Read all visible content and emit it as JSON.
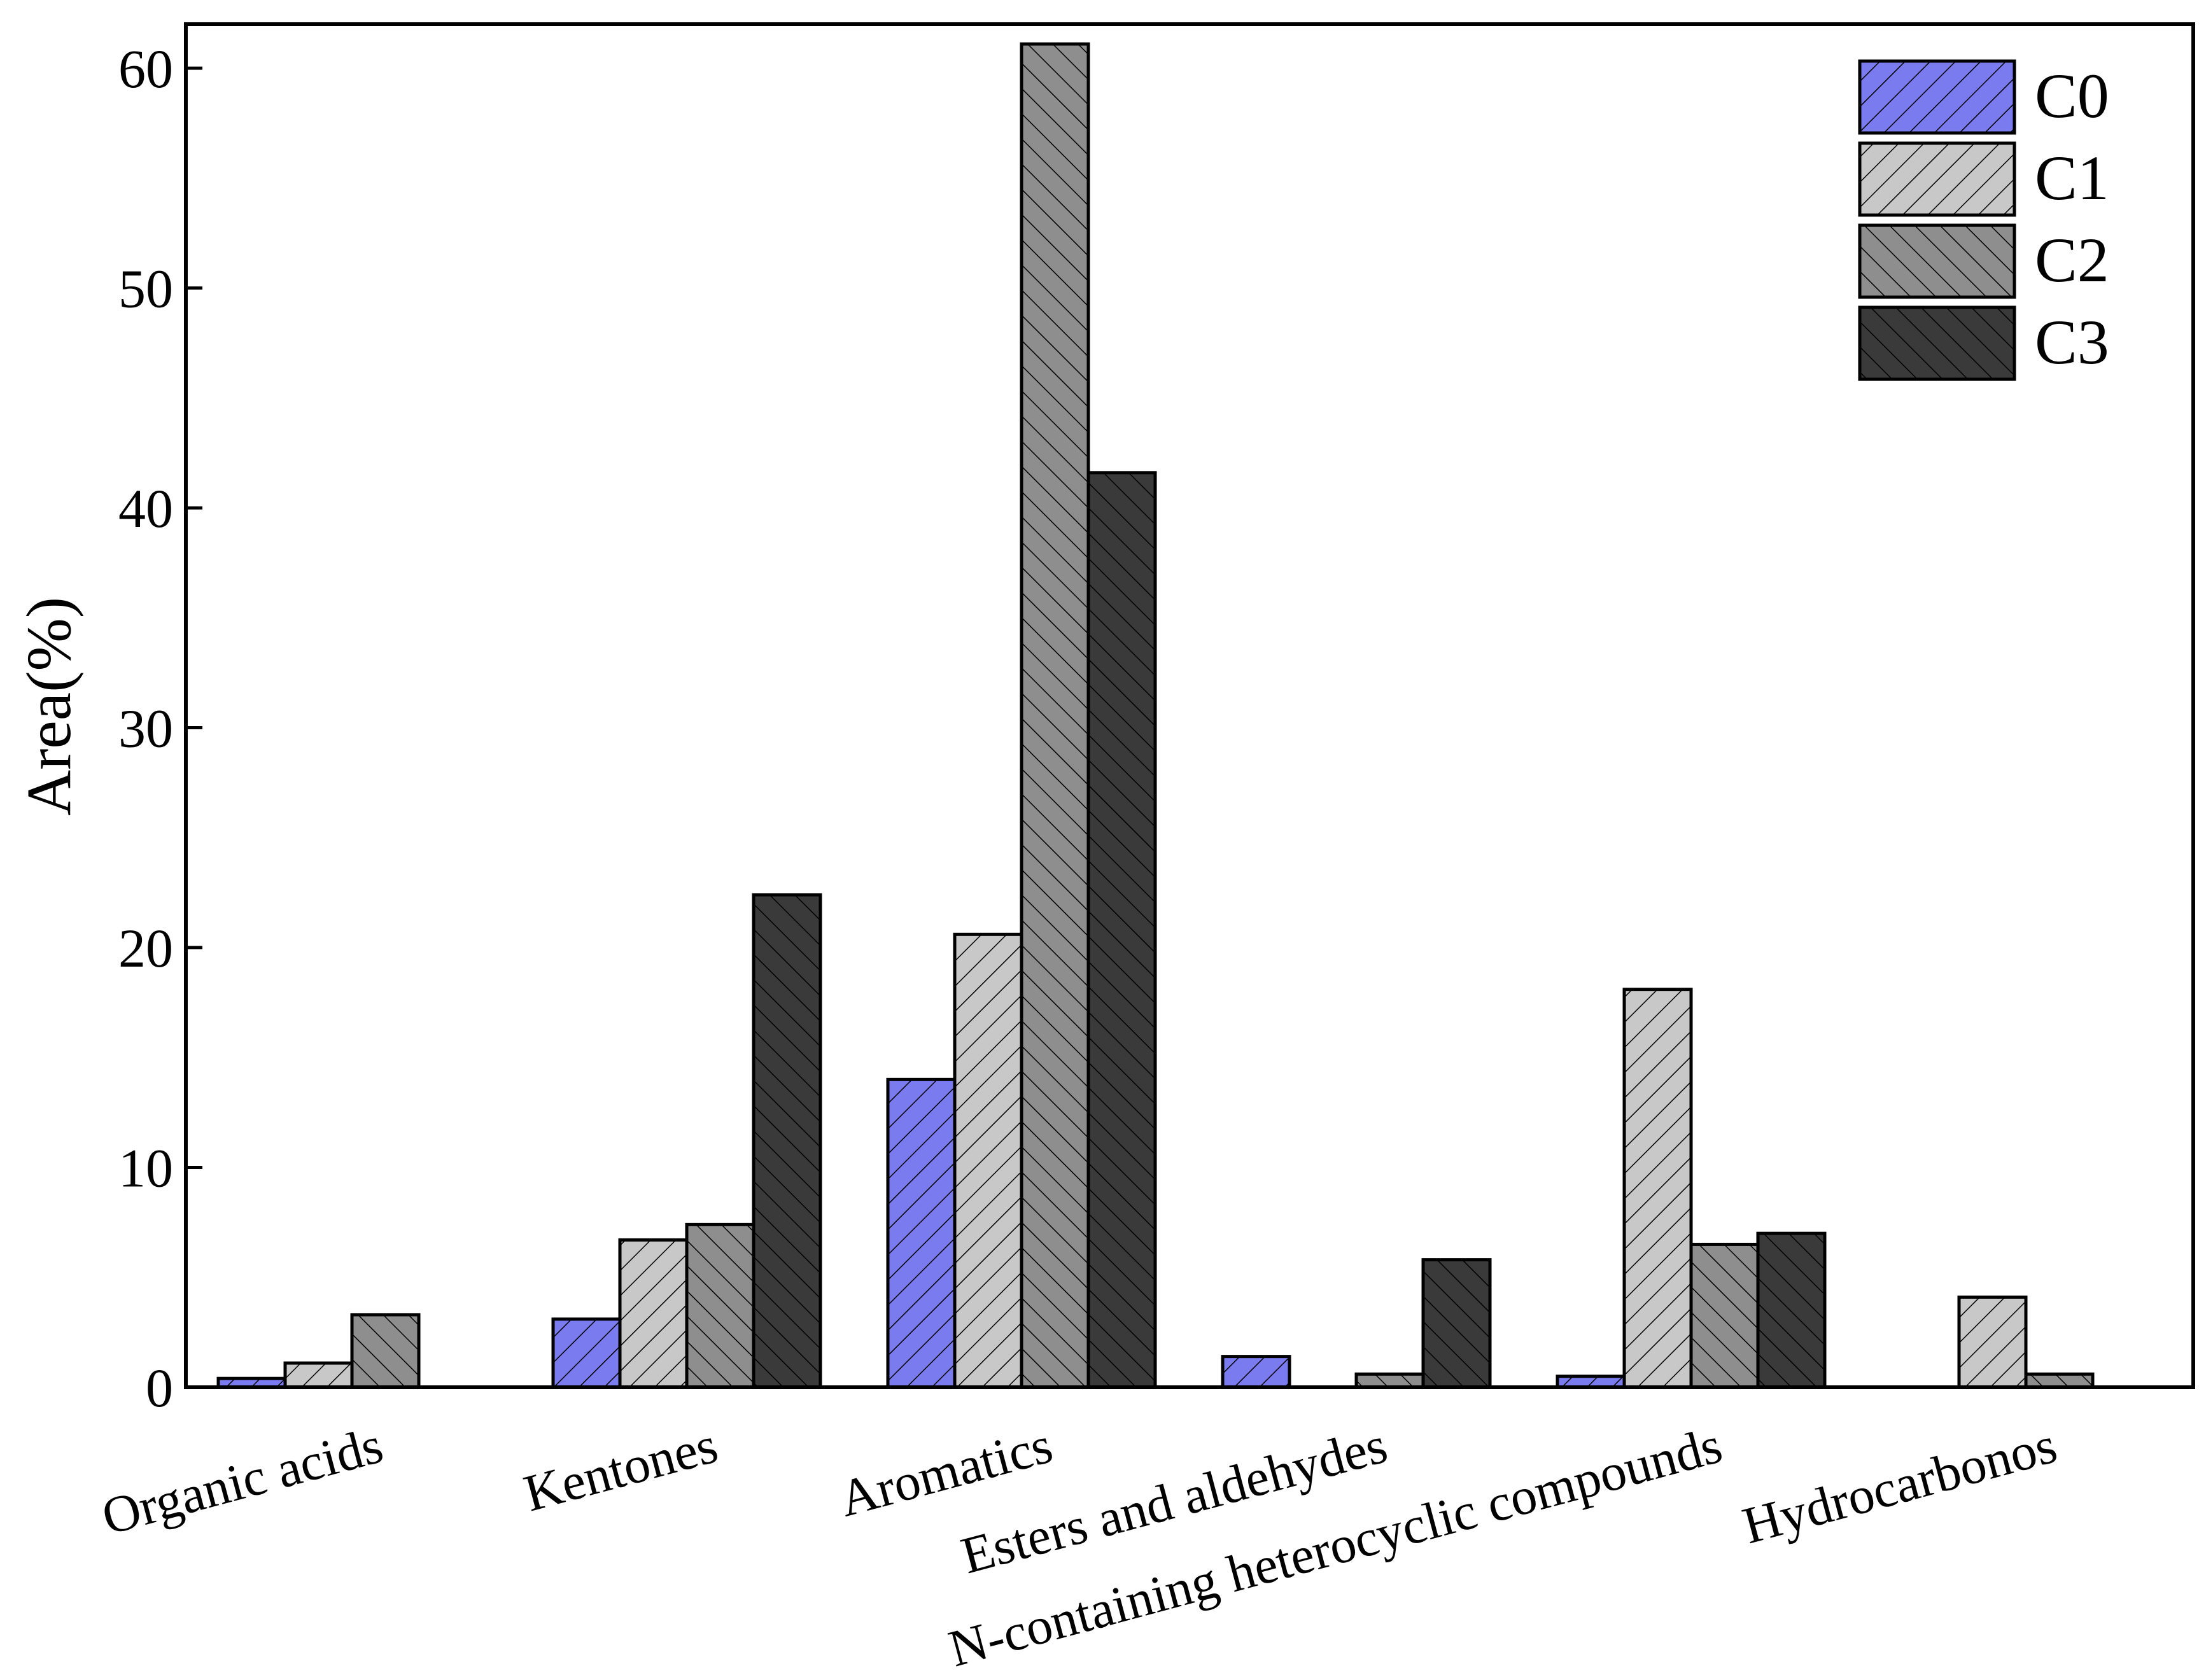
{
  "chart_data": {
    "type": "bar",
    "title": "",
    "xlabel": "",
    "ylabel": "Area(%)",
    "ylim": [
      0,
      62
    ],
    "yticks": [
      0,
      10,
      20,
      30,
      40,
      50,
      60
    ],
    "grid": false,
    "legend_position": "top-right",
    "categories": [
      "Organic acids",
      "Kentones",
      "Aromatics",
      "Esters and aldehydes",
      "N-containing heterocyclic compounds",
      "Hydrocarbonos"
    ],
    "series": [
      {
        "name": "C0",
        "color": "#7b7bf0",
        "hatch": "forward",
        "values": [
          0.4,
          3.1,
          14.0,
          1.4,
          0.5,
          0
        ]
      },
      {
        "name": "C1",
        "color": "#c8c8c8",
        "hatch": "forward",
        "values": [
          1.1,
          6.7,
          20.6,
          0,
          18.1,
          4.1
        ]
      },
      {
        "name": "C2",
        "color": "#8e8e8e",
        "hatch": "backward",
        "values": [
          3.3,
          7.4,
          61.1,
          0.6,
          6.5,
          0.6
        ]
      },
      {
        "name": "C3",
        "color": "#3a3a3a",
        "hatch": "backward",
        "values": [
          0,
          22.4,
          41.6,
          5.8,
          7.0,
          0
        ]
      }
    ]
  }
}
